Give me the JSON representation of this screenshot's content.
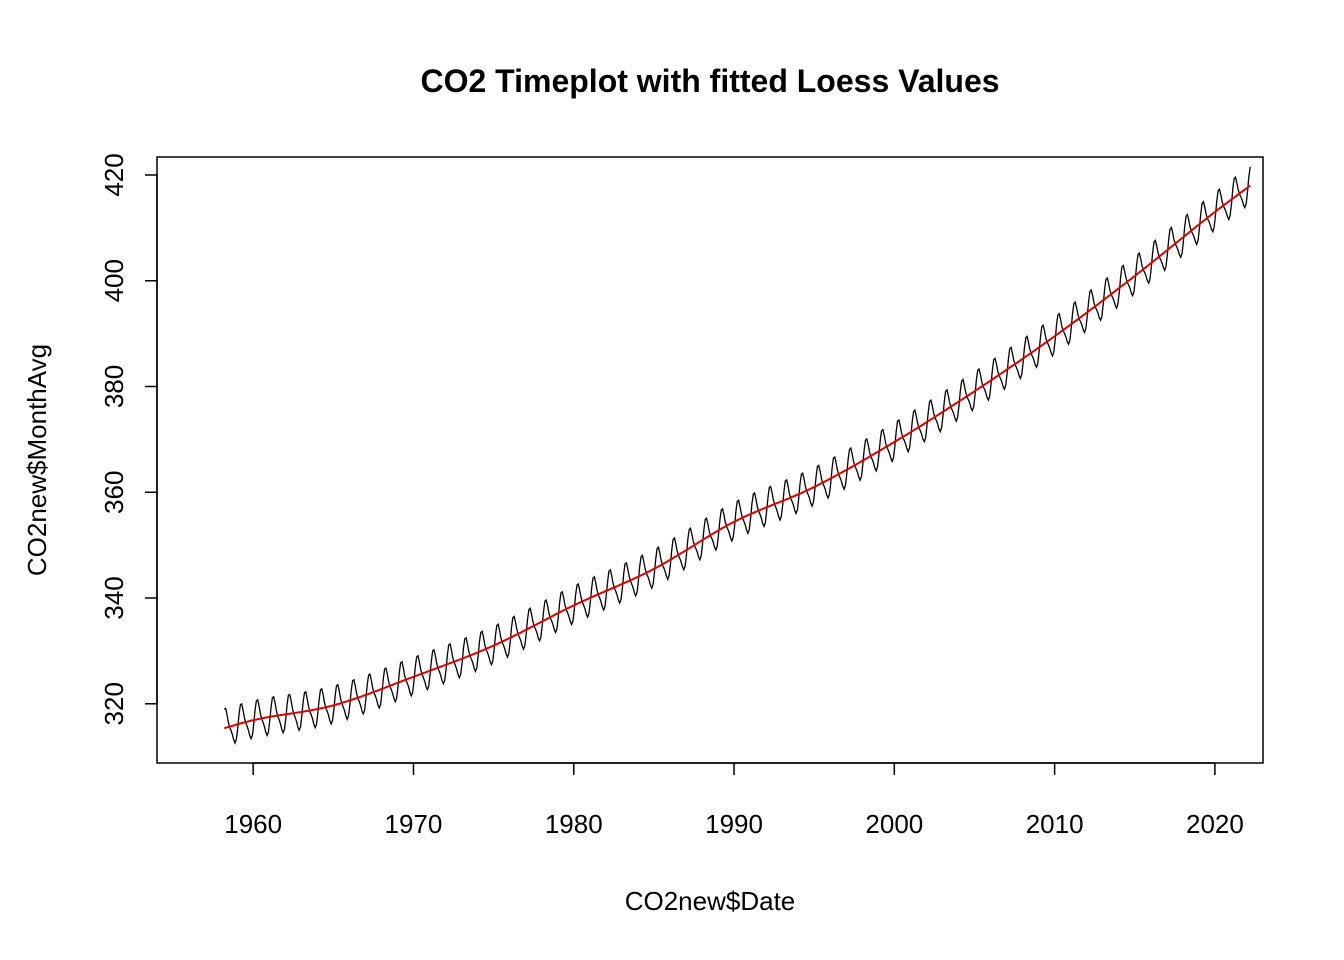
{
  "chart_data": {
    "type": "line",
    "title": "CO2 Timeplot with fitted Loess Values",
    "xlabel": "CO2new$Date",
    "ylabel": "CO2new$MonthAvg",
    "xlim": [
      1954,
      2023
    ],
    "ylim": [
      308.8,
      423.4
    ],
    "x_ticks": [
      1960,
      1970,
      1980,
      1990,
      2000,
      2010,
      2020
    ],
    "x_tick_labels": [
      "1960",
      "1970",
      "1980",
      "1990",
      "2000",
      "2010",
      "2020"
    ],
    "y_ticks": [
      320,
      340,
      360,
      380,
      400,
      420
    ],
    "y_tick_labels": [
      "320",
      "340",
      "360",
      "380",
      "400",
      "420"
    ],
    "grid": false,
    "legend": "none",
    "x_range": [
      1958.2,
      2022.2
    ],
    "series": [
      {
        "role": "monthly-average",
        "color": "#000000",
        "note_seasonal_amplitude": 3.2,
        "trend_anchors": {
          "x": [
            1958.2,
            1960,
            1965,
            1970,
            1975,
            1980,
            1985,
            1990,
            1995,
            2000,
            2005,
            2010,
            2015,
            2020,
            2022.2
          ],
          "y": [
            315.4,
            316.9,
            319.7,
            325.1,
            331.0,
            338.6,
            345.5,
            354.4,
            361.0,
            369.5,
            379.1,
            389.5,
            400.9,
            413.0,
            418.0
          ]
        }
      },
      {
        "role": "loess-fit",
        "color": "#dd0000",
        "x": [
          1958.2,
          1960,
          1965,
          1970,
          1975,
          1980,
          1985,
          1990,
          1995,
          2000,
          2005,
          2010,
          2015,
          2020,
          2022.2
        ],
        "y": [
          315.4,
          316.9,
          319.7,
          325.1,
          331.0,
          338.6,
          345.5,
          354.4,
          361.0,
          369.5,
          379.1,
          389.5,
          400.9,
          413.0,
          418.0
        ]
      }
    ]
  }
}
